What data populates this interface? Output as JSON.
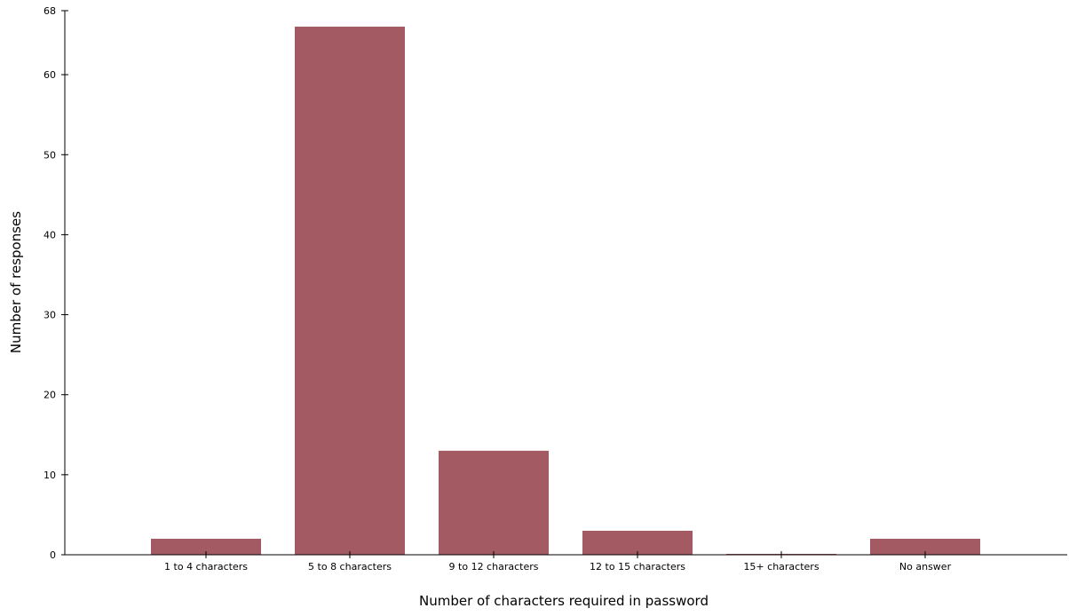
{
  "chart_data": {
    "type": "bar",
    "title": "",
    "xlabel": "Number of characters required in password",
    "ylabel": "Number of responses",
    "categories": [
      "1 to 4 characters",
      "5 to 8 characters",
      "9 to 12 characters",
      "12 to 15 characters",
      "15+ characters",
      "No answer"
    ],
    "values": [
      2,
      66,
      13,
      3,
      0,
      2
    ],
    "ylim": [
      0,
      68
    ],
    "yticks": [
      0,
      10,
      20,
      30,
      40,
      50,
      60,
      68
    ],
    "grid": false,
    "legend": "none",
    "bar_color": "#a45a63",
    "axis_color": "#000000"
  }
}
